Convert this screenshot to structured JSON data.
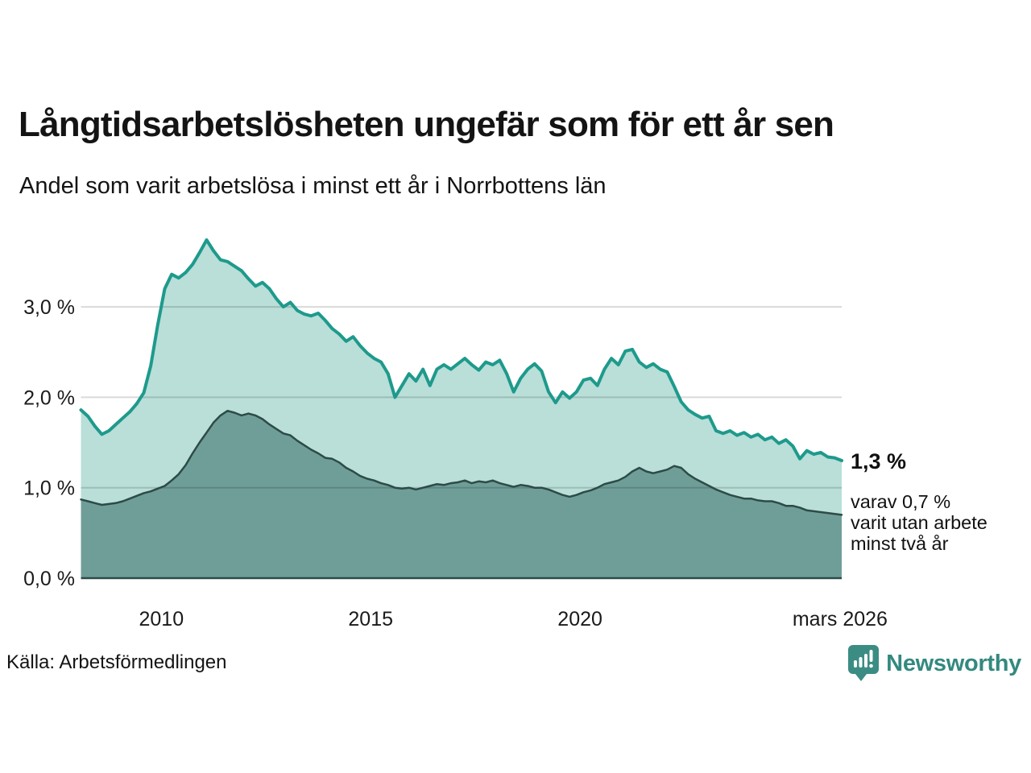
{
  "header": {
    "title": "Långtidsarbetslösheten ungefär som för ett år sen",
    "subtitle": "Andel som varit arbetslösa i minst ett år i Norrbottens län"
  },
  "annotation": {
    "value_label": "1,3 %",
    "detail_line1": "varav 0,7 %",
    "detail_line2": "varit utan arbete",
    "detail_line3": "minst två år"
  },
  "footer": {
    "source": "Källa: Arbetsförmedlingen",
    "brand": "Newsworthy"
  },
  "colors": {
    "series1_line": "#1e9a8c",
    "series1_fill": "#b9dfd8",
    "series2_line": "#2d4b47",
    "series2_fill": "#6f9e99",
    "gridline": "rgba(0,0,0,0.15)",
    "axis_text": "#1a1a1a",
    "brand_teal": "#33897f"
  },
  "chart_data": {
    "type": "area",
    "title": "Långtidsarbetslösheten ungefär som för ett år sen",
    "subtitle": "Andel som varit arbetslösa i minst ett år i Norrbottens län",
    "x_start_year": 2008.08,
    "x_end_year": 2026.25,
    "points_interval_years": 0.1667,
    "ylim": [
      0,
      3.9
    ],
    "grid": true,
    "legend_position": "none",
    "y_axis_ticks": [
      {
        "value": 0,
        "label": "0,0 %"
      },
      {
        "value": 1,
        "label": "1,0 %"
      },
      {
        "value": 2,
        "label": "2,0 %"
      },
      {
        "value": 3,
        "label": "3,0 %"
      }
    ],
    "x_axis_ticks": [
      {
        "year": 2010,
        "label": "2010"
      },
      {
        "year": 2015,
        "label": "2015"
      },
      {
        "year": 2020,
        "label": "2020"
      },
      {
        "year": 2026.21,
        "label": "mars 2026"
      }
    ],
    "series": [
      {
        "name": "Andel arbetslösa minst ett år",
        "end_label": "1,3 %",
        "line_color": "#1e9a8c",
        "fill_color": "#b9dfd8",
        "line_width": 4,
        "values": [
          1.86,
          1.79,
          1.68,
          1.59,
          1.63,
          1.7,
          1.77,
          1.84,
          1.93,
          2.05,
          2.35,
          2.8,
          3.2,
          3.36,
          3.32,
          3.38,
          3.47,
          3.6,
          3.74,
          3.62,
          3.52,
          3.5,
          3.45,
          3.4,
          3.31,
          3.23,
          3.27,
          3.2,
          3.09,
          3.0,
          3.05,
          2.96,
          2.92,
          2.9,
          2.93,
          2.85,
          2.76,
          2.7,
          2.62,
          2.67,
          2.57,
          2.49,
          2.43,
          2.39,
          2.26,
          2.0,
          2.13,
          2.26,
          2.18,
          2.31,
          2.13,
          2.31,
          2.36,
          2.31,
          2.37,
          2.43,
          2.36,
          2.3,
          2.39,
          2.36,
          2.41,
          2.26,
          2.06,
          2.21,
          2.31,
          2.37,
          2.29,
          2.06,
          1.94,
          2.06,
          1.99,
          2.06,
          2.19,
          2.21,
          2.13,
          2.31,
          2.43,
          2.36,
          2.51,
          2.53,
          2.39,
          2.33,
          2.37,
          2.31,
          2.28,
          2.12,
          1.95,
          1.86,
          1.81,
          1.77,
          1.79,
          1.63,
          1.6,
          1.63,
          1.58,
          1.61,
          1.56,
          1.59,
          1.53,
          1.56,
          1.49,
          1.53,
          1.46,
          1.32,
          1.41,
          1.37,
          1.39,
          1.34,
          1.33,
          1.3
        ]
      },
      {
        "name": "varav utan arbete minst två år",
        "end_label": "0,7 %",
        "line_color": "#2d4b47",
        "fill_color": "#6f9e99",
        "line_width": 2.5,
        "values": [
          0.87,
          0.85,
          0.83,
          0.81,
          0.82,
          0.83,
          0.85,
          0.88,
          0.91,
          0.94,
          0.96,
          0.99,
          1.02,
          1.08,
          1.15,
          1.25,
          1.38,
          1.5,
          1.61,
          1.72,
          1.8,
          1.85,
          1.83,
          1.8,
          1.82,
          1.8,
          1.76,
          1.7,
          1.65,
          1.6,
          1.58,
          1.52,
          1.47,
          1.42,
          1.38,
          1.33,
          1.32,
          1.28,
          1.22,
          1.18,
          1.13,
          1.1,
          1.08,
          1.05,
          1.03,
          1.0,
          0.99,
          1.0,
          0.98,
          1.0,
          1.02,
          1.04,
          1.03,
          1.05,
          1.06,
          1.08,
          1.05,
          1.07,
          1.06,
          1.08,
          1.05,
          1.03,
          1.01,
          1.03,
          1.02,
          1.0,
          1.0,
          0.98,
          0.95,
          0.92,
          0.9,
          0.92,
          0.95,
          0.97,
          1.0,
          1.04,
          1.06,
          1.08,
          1.12,
          1.18,
          1.22,
          1.18,
          1.16,
          1.18,
          1.2,
          1.24,
          1.22,
          1.15,
          1.1,
          1.06,
          1.02,
          0.98,
          0.95,
          0.92,
          0.9,
          0.88,
          0.88,
          0.86,
          0.85,
          0.85,
          0.83,
          0.8,
          0.8,
          0.78,
          0.75,
          0.74,
          0.73,
          0.72,
          0.71,
          0.7
        ]
      }
    ]
  }
}
